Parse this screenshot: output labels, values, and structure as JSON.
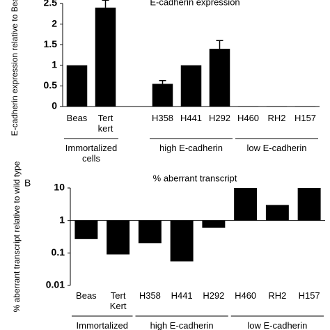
{
  "chart_data": [
    {
      "type": "bar",
      "title": "E-cadherin expression",
      "ylabel": "E-cadherin expression relative to Beas cells",
      "categories": [
        "Beas",
        "Tert kert",
        null,
        "H358",
        "H441",
        "H292",
        "H460",
        "RH2",
        "H157"
      ],
      "values": [
        1,
        2.4,
        null,
        0.55,
        1,
        1.4,
        0.01,
        0.01,
        0.01
      ],
      "errors": [
        null,
        0.18,
        null,
        0.08,
        null,
        0.2,
        null,
        null,
        null
      ],
      "color": "#000000",
      "ylim": [
        0,
        2.5
      ],
      "yticks": [
        0,
        0.5,
        1,
        1.5,
        2,
        2.5
      ],
      "groups": [
        "Immortalized cells",
        "high E-cadherin",
        "low E-cadherin"
      ]
    },
    {
      "type": "bar",
      "title": "% aberrant transcript",
      "panel": "B",
      "ylabel": "% aberrant transcript relative to wild type",
      "categories": [
        "Beas",
        "Tert Kert",
        "H358",
        "H441",
        "H292",
        "H460",
        "RH2",
        "H157"
      ],
      "values": [
        0.27,
        0.09,
        0.2,
        0.055,
        0.6,
        10,
        3,
        10
      ],
      "color": "#000000",
      "log_scale": true,
      "baseline": 1,
      "ylim": [
        0.01,
        10
      ],
      "yticks": [
        0.01,
        0.1,
        1,
        10
      ],
      "groups": [
        "Immortalized",
        "high E-cadherin",
        "low E-cadherin"
      ]
    }
  ]
}
